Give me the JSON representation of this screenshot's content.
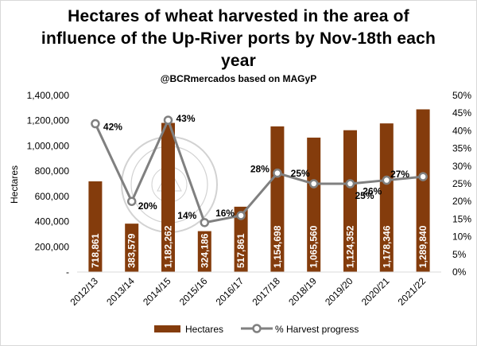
{
  "title_lines": [
    "Hectares of wheat harvested in the area of",
    "influence of the Up-River ports by Nov-18th each",
    "year"
  ],
  "subtitle": "@BCRmercados based on MAGyP",
  "chart_data": {
    "type": "bar",
    "categories": [
      "2012/13",
      "2013/14",
      "2014/15",
      "2015/16",
      "2016/17",
      "2017/18",
      "2018/19",
      "2019/20",
      "2020/21",
      "2021/22"
    ],
    "series": [
      {
        "name": "Hectares",
        "type": "bar",
        "axis": "left",
        "values": [
          718861,
          383579,
          1182262,
          324186,
          517861,
          1154698,
          1065560,
          1124352,
          1178346,
          1289840
        ],
        "labels": [
          "718,861",
          "383,579",
          "1,182,262",
          "324,186",
          "517,861",
          "1,154,698",
          "1,065,560",
          "1,124,352",
          "1,178,346",
          "1,289,840"
        ],
        "color": "#843c0c"
      },
      {
        "name": "% Harvest progress",
        "type": "line",
        "axis": "right",
        "values": [
          0.42,
          0.2,
          0.43,
          0.14,
          0.16,
          0.28,
          0.25,
          0.25,
          0.26,
          0.27
        ],
        "labels": [
          "42%",
          "20%",
          "43%",
          "14%",
          "16%",
          "28%",
          "25%",
          "25%",
          "26%",
          "27%"
        ],
        "color": "#808080"
      }
    ],
    "ylabel": "Hectares",
    "ylim": [
      0,
      1400000
    ],
    "yticks": [
      "-",
      "200,000",
      "400,000",
      "600,000",
      "800,000",
      "1,000,000",
      "1,200,000",
      "1,400,000"
    ],
    "y2lim": [
      0,
      0.5
    ],
    "y2ticks": [
      "0%",
      "5%",
      "10%",
      "15%",
      "20%",
      "25%",
      "30%",
      "35%",
      "40%",
      "45%",
      "50%"
    ],
    "grid": false,
    "legend": "bottom"
  }
}
